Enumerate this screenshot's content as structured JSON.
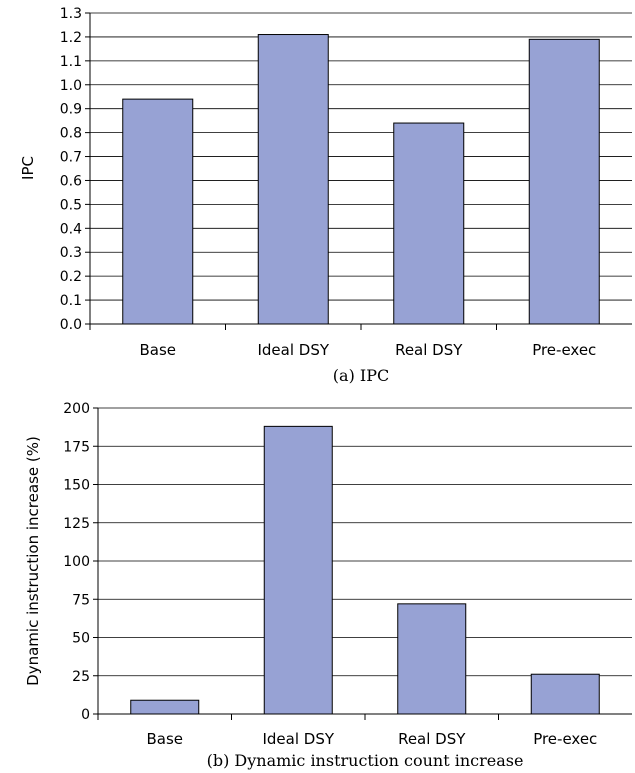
{
  "colors": {
    "bar_fill": "#97A2D4"
  },
  "chart_data": [
    {
      "type": "bar",
      "categories": [
        "Base",
        "Ideal DSY",
        "Real DSY",
        "Pre-exec"
      ],
      "values": [
        0.94,
        1.21,
        0.84,
        1.19
      ],
      "title": "",
      "xlabel": "",
      "ylabel": "IPC",
      "ylim": [
        0,
        1.3
      ],
      "yticks": [
        0.0,
        0.1,
        0.2,
        0.3,
        0.4,
        0.5,
        0.6,
        0.7,
        0.8,
        0.9,
        1.0,
        1.1,
        1.2,
        1.3
      ],
      "grid": true,
      "caption": "(a) IPC"
    },
    {
      "type": "bar",
      "categories": [
        "Base",
        "Ideal DSY",
        "Real DSY",
        "Pre-exec"
      ],
      "values": [
        9,
        188,
        72,
        26
      ],
      "title": "",
      "xlabel": "",
      "ylabel": "Dynamic instruction increase (%)",
      "ylim": [
        0,
        200
      ],
      "yticks": [
        0,
        25,
        50,
        75,
        100,
        125,
        150,
        175,
        200
      ],
      "grid": true,
      "caption": "(b) Dynamic instruction count increase"
    }
  ]
}
